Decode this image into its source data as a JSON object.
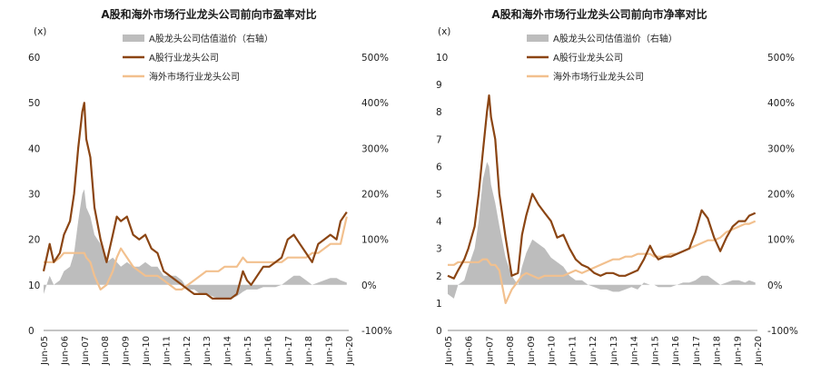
{
  "x_ticks": [
    "Jun-05",
    "Jun-06",
    "Jun-07",
    "Jun-08",
    "Jun-09",
    "Jun-10",
    "Jun-11",
    "Jun-12",
    "Jun-13",
    "Jun-14",
    "Jun-15",
    "Jun-16",
    "Jun-17",
    "Jun-18",
    "Jun-19",
    "Jun-20"
  ],
  "colors": {
    "a_share": "#8B4513",
    "overseas": "#F2C08E",
    "premium": "#BDBDBD"
  },
  "chart_data": [
    {
      "type": "line",
      "title": "A股和海外市场行业龙头公司前向市盈率对比",
      "ylabel": "(x)",
      "ylim": [
        0,
        60
      ],
      "yticks": [
        "0",
        "10",
        "20",
        "30",
        "40",
        "50",
        "60"
      ],
      "y2lim": [
        -100,
        500
      ],
      "y2ticks": [
        "-100%",
        "0%",
        "100%",
        "200%",
        "300%",
        "400%",
        "500%"
      ],
      "legend": [
        "A股龙头公司估值溢价（右轴）",
        "A股行业龙头公司",
        "海外市场行业龙头公司"
      ],
      "x": [
        2005.5,
        2005.8,
        2006.0,
        2006.3,
        2006.5,
        2006.8,
        2007.0,
        2007.2,
        2007.4,
        2007.5,
        2007.6,
        2007.8,
        2008.0,
        2008.3,
        2008.6,
        2008.9,
        2009.1,
        2009.3,
        2009.6,
        2009.9,
        2010.2,
        2010.5,
        2010.8,
        2011.1,
        2011.4,
        2011.7,
        2012.0,
        2012.3,
        2012.6,
        2012.9,
        2013.2,
        2013.5,
        2013.8,
        2014.1,
        2014.4,
        2014.7,
        2015.0,
        2015.3,
        2015.5,
        2015.7,
        2016.0,
        2016.3,
        2016.6,
        2016.9,
        2017.2,
        2017.5,
        2017.8,
        2018.1,
        2018.4,
        2018.7,
        2019.0,
        2019.3,
        2019.6,
        2019.9,
        2020.1,
        2020.4
      ],
      "series": [
        {
          "name": "A股行业龙头公司",
          "axis": "left",
          "values": [
            13,
            19,
            15,
            17,
            21,
            24,
            30,
            40,
            48,
            50,
            42,
            38,
            27,
            20,
            15,
            21,
            25,
            24,
            25,
            21,
            20,
            21,
            18,
            17,
            13,
            12,
            11,
            10,
            9,
            8,
            8,
            8,
            7,
            7,
            7,
            7,
            8,
            13,
            11,
            10,
            12,
            14,
            14,
            15,
            16,
            20,
            21,
            19,
            17,
            15,
            19,
            20,
            21,
            20,
            24,
            26
          ]
        },
        {
          "name": "海外市场行业龙头公司",
          "axis": "left",
          "values": [
            15,
            15,
            15,
            16,
            17,
            17,
            17,
            17,
            17,
            17,
            16,
            15,
            12,
            9,
            10,
            13,
            16,
            18,
            16,
            14,
            13,
            12,
            12,
            12,
            11,
            10,
            9,
            9,
            10,
            11,
            12,
            13,
            13,
            13,
            14,
            14,
            14,
            16,
            15,
            15,
            15,
            15,
            15,
            15,
            15,
            16,
            16,
            16,
            16,
            17,
            17,
            18,
            19,
            19,
            19,
            25
          ]
        },
        {
          "name": "A股龙头公司估值溢价（右轴）",
          "axis": "right",
          "type": "area",
          "values": [
            -20,
            20,
            0,
            10,
            30,
            40,
            70,
            140,
            200,
            210,
            170,
            150,
            110,
            90,
            50,
            60,
            50,
            40,
            50,
            40,
            40,
            50,
            40,
            40,
            20,
            20,
            20,
            10,
            -10,
            -10,
            -20,
            -20,
            -25,
            -30,
            -30,
            -30,
            -25,
            -15,
            -10,
            -10,
            -10,
            -5,
            -5,
            -5,
            0,
            10,
            20,
            20,
            10,
            0,
            5,
            10,
            15,
            15,
            10,
            5
          ]
        }
      ]
    },
    {
      "type": "line",
      "title": "A股和海外市场行业龙头公司前向市净率对比",
      "ylabel": "(x)",
      "ylim": [
        0,
        10
      ],
      "yticks": [
        "0",
        "1",
        "2",
        "3",
        "4",
        "5",
        "6",
        "7",
        "8",
        "9",
        "10"
      ],
      "y2lim": [
        -100,
        500
      ],
      "y2ticks": [
        "-100%",
        "0%",
        "100%",
        "200%",
        "300%",
        "400%",
        "500%"
      ],
      "legend": [
        "A股龙头公司估值溢价（右轴）",
        "A股行业龙头公司",
        "海外市场行业龙头公司"
      ],
      "x": [
        2005.5,
        2005.8,
        2006.0,
        2006.3,
        2006.5,
        2006.8,
        2007.0,
        2007.2,
        2007.4,
        2007.5,
        2007.6,
        2007.8,
        2008.0,
        2008.3,
        2008.6,
        2008.9,
        2009.1,
        2009.3,
        2009.6,
        2009.9,
        2010.2,
        2010.5,
        2010.8,
        2011.1,
        2011.4,
        2011.7,
        2012.0,
        2012.3,
        2012.6,
        2012.9,
        2013.2,
        2013.5,
        2013.8,
        2014.1,
        2014.4,
        2014.7,
        2015.0,
        2015.3,
        2015.5,
        2015.7,
        2016.0,
        2016.3,
        2016.6,
        2016.9,
        2017.2,
        2017.5,
        2017.8,
        2018.1,
        2018.4,
        2018.7,
        2019.0,
        2019.3,
        2019.6,
        2019.9,
        2020.1,
        2020.4
      ],
      "series": [
        {
          "name": "A股行业龙头公司",
          "axis": "left",
          "values": [
            2.0,
            1.9,
            2.2,
            2.6,
            3.0,
            3.8,
            5.0,
            6.5,
            8.0,
            8.6,
            7.8,
            7.0,
            5.0,
            3.4,
            2.0,
            2.1,
            3.5,
            4.2,
            5.0,
            4.6,
            4.3,
            4.0,
            3.4,
            3.5,
            3.0,
            2.6,
            2.4,
            2.3,
            2.1,
            2.0,
            2.1,
            2.1,
            2.0,
            2.0,
            2.1,
            2.2,
            2.6,
            3.1,
            2.8,
            2.6,
            2.7,
            2.7,
            2.8,
            2.9,
            3.0,
            3.6,
            4.4,
            4.1,
            3.4,
            2.9,
            3.4,
            3.8,
            4.0,
            4.0,
            4.2,
            4.3
          ]
        },
        {
          "name": "海外市场行业龙头公司",
          "axis": "left",
          "values": [
            2.4,
            2.4,
            2.5,
            2.5,
            2.5,
            2.5,
            2.5,
            2.6,
            2.6,
            2.5,
            2.4,
            2.4,
            2.2,
            1.0,
            1.5,
            1.8,
            2.0,
            2.1,
            2.0,
            1.9,
            2.0,
            2.0,
            2.0,
            2.0,
            2.1,
            2.2,
            2.1,
            2.2,
            2.3,
            2.4,
            2.5,
            2.6,
            2.6,
            2.7,
            2.7,
            2.8,
            2.8,
            2.8,
            2.7,
            2.7,
            2.7,
            2.8,
            2.8,
            2.9,
            3.0,
            3.1,
            3.2,
            3.3,
            3.3,
            3.4,
            3.6,
            3.7,
            3.8,
            3.9,
            3.9,
            4.0
          ]
        },
        {
          "name": "A股龙头公司估值溢价（右轴）",
          "axis": "right",
          "type": "area",
          "values": [
            -20,
            -30,
            0,
            10,
            40,
            80,
            140,
            230,
            270,
            260,
            220,
            180,
            130,
            60,
            20,
            0,
            40,
            70,
            100,
            90,
            80,
            60,
            50,
            40,
            20,
            10,
            10,
            0,
            -5,
            -10,
            -10,
            -15,
            -15,
            -10,
            -5,
            -10,
            5,
            0,
            0,
            -5,
            -5,
            -5,
            0,
            5,
            5,
            10,
            20,
            20,
            10,
            0,
            5,
            10,
            10,
            5,
            10,
            5
          ]
        }
      ]
    }
  ]
}
